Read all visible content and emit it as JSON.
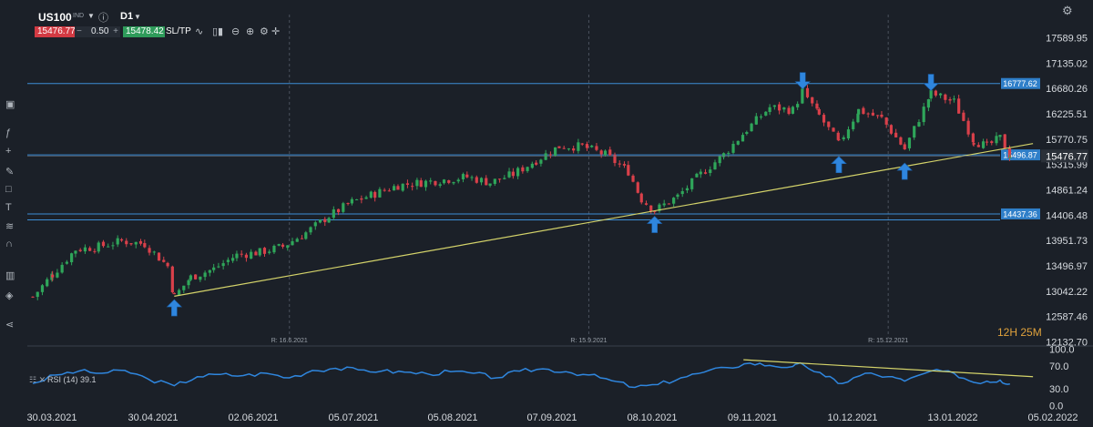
{
  "toolbar": {
    "symbol": "US100",
    "symbol_suffix": "IND",
    "timeframe": "D1",
    "sell_price": "15476.77",
    "lot_value": "0.50",
    "buy_price": "15478.42",
    "sltp_label": "SL/TP",
    "icons": [
      "info-icon",
      "line-chart-icon",
      "candles-icon",
      "indicator-icon",
      "zoom-out-icon",
      "zoom-in-icon",
      "settings-icon",
      "crosshair-icon",
      "gear-icon"
    ]
  },
  "sidebar_icons": [
    "screen-icon",
    "function-icon",
    "plus-icon",
    "pen-icon",
    "rectangle-icon",
    "text-icon",
    "fibonacci-icon",
    "magnet-icon",
    "bars-icon",
    "layers-icon",
    "share-icon"
  ],
  "colors": {
    "background": "#1b2028",
    "bull": "#2fa65a",
    "bear": "#d9404a",
    "level_line": "#3d8ed6",
    "trend_line": "#d4d36a",
    "rsi_line": "#2f86de",
    "countdown": "#e0a23c",
    "arrow": "#2f86de"
  },
  "chart_data": [
    {
      "type": "candlestick",
      "title": "",
      "x_labels": [
        "30.03.2021",
        "30.04.2021",
        "02.06.2021",
        "05.07.2021",
        "05.08.2021",
        "07.09.2021",
        "08.10.2021",
        "09.11.2021",
        "10.12.2021",
        "13.01.2022",
        "05.02.2022"
      ],
      "y_ticks": [
        17589.95,
        17135.02,
        16680.26,
        16225.51,
        15770.75,
        15315.99,
        14861.24,
        14406.48,
        13951.73,
        13496.97,
        13042.22,
        12587.46,
        12132.7
      ],
      "ylim": [
        12132.7,
        17589.95
      ],
      "current_price": "15476.77",
      "countdown": "12H 25M",
      "price_lines": [
        {
          "value": 16777.62,
          "label": "16777.62"
        },
        {
          "value": 15496.87,
          "label": "15496.87"
        },
        {
          "value": 14437.36,
          "label": "14437.36"
        },
        {
          "value": 14330.0,
          "label": ""
        }
      ],
      "rollover_markers": [
        {
          "date": "16.6.2021",
          "label": "R: 16.6.2021"
        },
        {
          "date": "15.9.2021",
          "label": "R: 15.9.2021"
        },
        {
          "date": "15.12.2021",
          "label": "R: 15.12.2021"
        }
      ],
      "trendline": {
        "start": {
          "date": "2021-05-12",
          "value": 12960
        },
        "end": {
          "date": "2022-01-28",
          "value": 15700
        }
      },
      "annotations": [
        {
          "type": "arrow-up",
          "date": "2021-05-12",
          "value": 12900
        },
        {
          "type": "arrow-up",
          "date": "2021-10-05",
          "value": 14395
        },
        {
          "type": "arrow-down",
          "date": "2021-11-19",
          "value": 16680
        },
        {
          "type": "arrow-up",
          "date": "2021-11-30",
          "value": 15470
        },
        {
          "type": "arrow-up",
          "date": "2021-12-20",
          "value": 15350
        },
        {
          "type": "arrow-down",
          "date": "2021-12-28",
          "value": 16650
        },
        {
          "type": "arrow-up",
          "date": "2021-11-30",
          "value": 15470
        }
      ],
      "series": [
        {
          "name": "US100",
          "points": [
            {
              "date": "2021-03-30",
              "close": 12950
            },
            {
              "date": "2021-04-05",
              "close": 13350
            },
            {
              "date": "2021-04-12",
              "close": 13800
            },
            {
              "date": "2021-04-19",
              "close": 13850
            },
            {
              "date": "2021-04-26",
              "close": 13950
            },
            {
              "date": "2021-05-03",
              "close": 13900
            },
            {
              "date": "2021-05-10",
              "close": 13500
            },
            {
              "date": "2021-05-12",
              "close": 12950
            },
            {
              "date": "2021-05-17",
              "close": 13300
            },
            {
              "date": "2021-05-24",
              "close": 13450
            },
            {
              "date": "2021-05-31",
              "close": 13700
            },
            {
              "date": "2021-06-07",
              "close": 13750
            },
            {
              "date": "2021-06-14",
              "close": 13850
            },
            {
              "date": "2021-06-21",
              "close": 14100
            },
            {
              "date": "2021-06-28",
              "close": 14400
            },
            {
              "date": "2021-07-05",
              "close": 14650
            },
            {
              "date": "2021-07-12",
              "close": 14800
            },
            {
              "date": "2021-07-19",
              "close": 14950
            },
            {
              "date": "2021-07-26",
              "close": 15000
            },
            {
              "date": "2021-08-02",
              "close": 15050
            },
            {
              "date": "2021-08-09",
              "close": 15100
            },
            {
              "date": "2021-08-16",
              "close": 15000
            },
            {
              "date": "2021-08-23",
              "close": 15150
            },
            {
              "date": "2021-08-30",
              "close": 15400
            },
            {
              "date": "2021-09-06",
              "close": 15650
            },
            {
              "date": "2021-09-13",
              "close": 15650
            },
            {
              "date": "2021-09-20",
              "close": 15500
            },
            {
              "date": "2021-09-27",
              "close": 15200
            },
            {
              "date": "2021-10-01",
              "close": 14700
            },
            {
              "date": "2021-10-05",
              "close": 14500
            },
            {
              "date": "2021-10-12",
              "close": 14750
            },
            {
              "date": "2021-10-19",
              "close": 15150
            },
            {
              "date": "2021-10-26",
              "close": 15500
            },
            {
              "date": "2021-11-02",
              "close": 15950
            },
            {
              "date": "2021-11-09",
              "close": 16350
            },
            {
              "date": "2021-11-16",
              "close": 16300
            },
            {
              "date": "2021-11-19",
              "close": 16650
            },
            {
              "date": "2021-11-24",
              "close": 16200
            },
            {
              "date": "2021-11-30",
              "close": 15700
            },
            {
              "date": "2021-12-06",
              "close": 16300
            },
            {
              "date": "2021-12-13",
              "close": 16150
            },
            {
              "date": "2021-12-20",
              "close": 15600
            },
            {
              "date": "2021-12-28",
              "close": 16600
            },
            {
              "date": "2022-01-04",
              "close": 16450
            },
            {
              "date": "2022-01-10",
              "close": 15750
            },
            {
              "date": "2022-01-14",
              "close": 15650
            },
            {
              "date": "2022-01-18",
              "close": 15800
            },
            {
              "date": "2022-01-21",
              "close": 15476.77
            }
          ]
        }
      ]
    },
    {
      "type": "line",
      "title": "RSI (14) 39.1",
      "y_ticks": [
        100.0,
        70.0,
        30.0,
        0.0
      ],
      "ylim": [
        0,
        100
      ],
      "trendline": {
        "start": {
          "date": "2021-11-01",
          "value": 82
        },
        "end": {
          "date": "2022-01-28",
          "value": 52
        }
      },
      "series": [
        {
          "name": "RSI (14)",
          "points": [
            {
              "date": "2021-03-30",
              "value": 40
            },
            {
              "date": "2021-04-06",
              "value": 55
            },
            {
              "date": "2021-04-13",
              "value": 62
            },
            {
              "date": "2021-04-20",
              "value": 58
            },
            {
              "date": "2021-04-27",
              "value": 63
            },
            {
              "date": "2021-05-04",
              "value": 48
            },
            {
              "date": "2021-05-12",
              "value": 36
            },
            {
              "date": "2021-05-19",
              "value": 52
            },
            {
              "date": "2021-05-26",
              "value": 56
            },
            {
              "date": "2021-06-02",
              "value": 54
            },
            {
              "date": "2021-06-09",
              "value": 58
            },
            {
              "date": "2021-06-16",
              "value": 50
            },
            {
              "date": "2021-06-23",
              "value": 63
            },
            {
              "date": "2021-06-30",
              "value": 67
            },
            {
              "date": "2021-07-07",
              "value": 64
            },
            {
              "date": "2021-07-14",
              "value": 62
            },
            {
              "date": "2021-07-21",
              "value": 60
            },
            {
              "date": "2021-07-28",
              "value": 57
            },
            {
              "date": "2021-08-04",
              "value": 61
            },
            {
              "date": "2021-08-11",
              "value": 58
            },
            {
              "date": "2021-08-18",
              "value": 50
            },
            {
              "date": "2021-08-25",
              "value": 62
            },
            {
              "date": "2021-09-01",
              "value": 66
            },
            {
              "date": "2021-09-08",
              "value": 61
            },
            {
              "date": "2021-09-15",
              "value": 55
            },
            {
              "date": "2021-09-22",
              "value": 45
            },
            {
              "date": "2021-09-29",
              "value": 33
            },
            {
              "date": "2021-10-06",
              "value": 38
            },
            {
              "date": "2021-10-13",
              "value": 50
            },
            {
              "date": "2021-10-20",
              "value": 60
            },
            {
              "date": "2021-10-27",
              "value": 68
            },
            {
              "date": "2021-11-03",
              "value": 76
            },
            {
              "date": "2021-11-09",
              "value": 72
            },
            {
              "date": "2021-11-16",
              "value": 70
            },
            {
              "date": "2021-11-19",
              "value": 74
            },
            {
              "date": "2021-11-26",
              "value": 52
            },
            {
              "date": "2021-12-01",
              "value": 40
            },
            {
              "date": "2021-12-08",
              "value": 58
            },
            {
              "date": "2021-12-15",
              "value": 52
            },
            {
              "date": "2021-12-20",
              "value": 44
            },
            {
              "date": "2021-12-28",
              "value": 62
            },
            {
              "date": "2022-01-04",
              "value": 58
            },
            {
              "date": "2022-01-10",
              "value": 42
            },
            {
              "date": "2022-01-14",
              "value": 44
            },
            {
              "date": "2022-01-18",
              "value": 46
            },
            {
              "date": "2022-01-21",
              "value": 39.1
            }
          ]
        }
      ]
    }
  ]
}
